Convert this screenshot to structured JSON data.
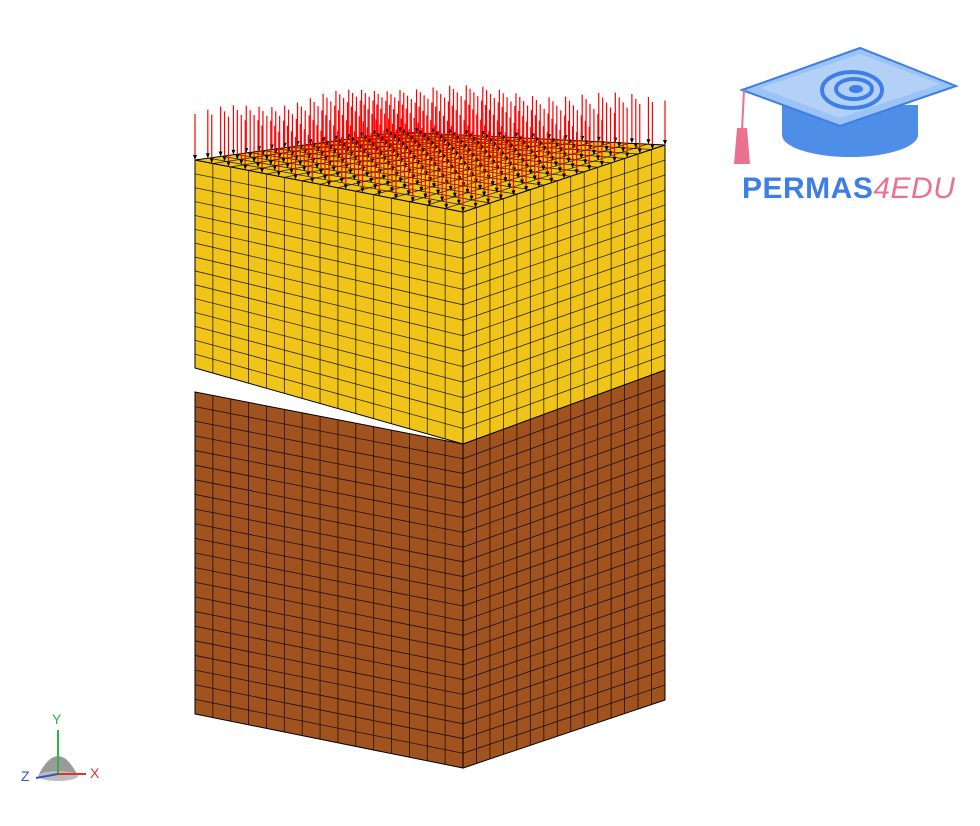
{
  "logo": {
    "text_main": "PERMAS",
    "text_accent": "4EDU",
    "color_main": "#3d7fe6",
    "color_accent": "#e8728f"
  },
  "model": {
    "upper_block_color": "#f0c419",
    "lower_block_color": "#a0521f",
    "load_arrow_color": "#ff0000",
    "mesh_line_color": "#000000",
    "upper_divisions": 15,
    "lower_divisions": 15,
    "upper_rows": 15,
    "lower_rows": 22
  },
  "triad": {
    "y_label": "Y",
    "x_label": "X",
    "z_label": "Z",
    "y_color": "#2db34a",
    "x_color": "#e0322b",
    "z_color": "#3355cc"
  }
}
